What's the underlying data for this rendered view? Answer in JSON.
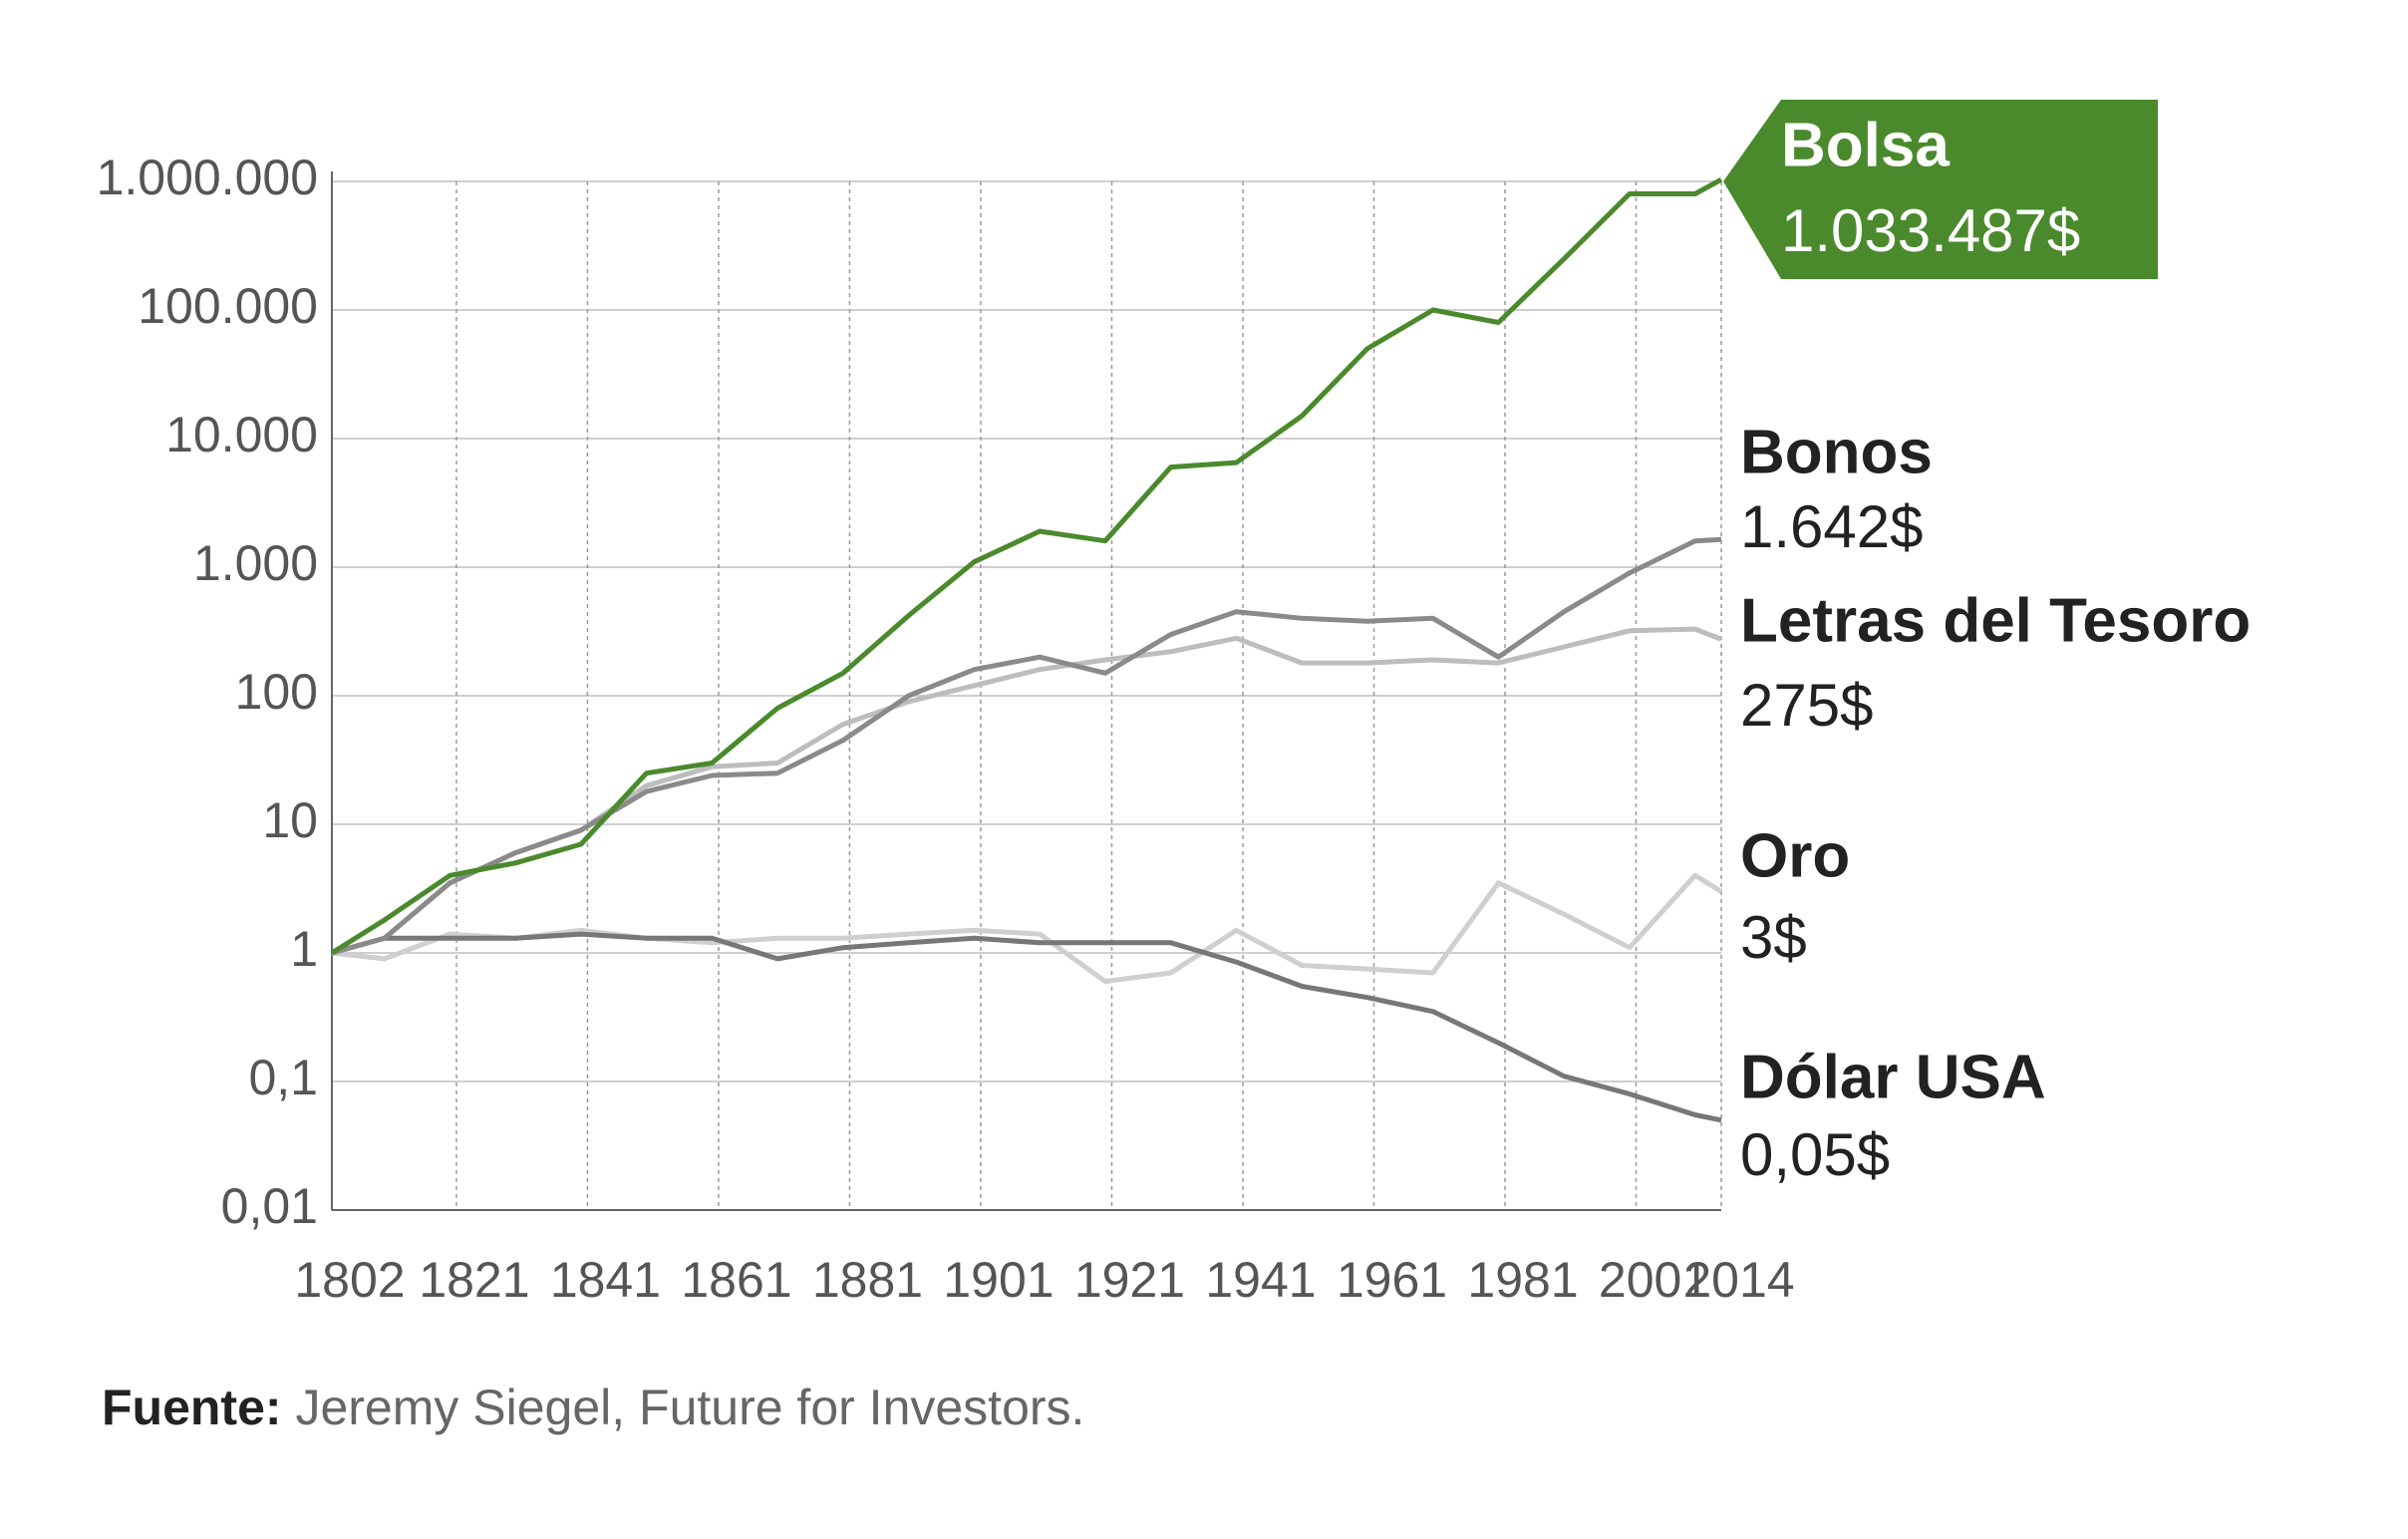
{
  "chart_data": {
    "type": "line",
    "log_y": true,
    "grid": true,
    "x": [
      1802,
      1810,
      1820,
      1830,
      1840,
      1850,
      1860,
      1870,
      1880,
      1890,
      1900,
      1910,
      1920,
      1930,
      1940,
      1950,
      1960,
      1970,
      1980,
      1990,
      2000,
      2010,
      2014
    ],
    "xlim": [
      1802,
      2014
    ],
    "xticks": [
      1802,
      1821,
      1841,
      1861,
      1881,
      1901,
      1921,
      1941,
      1961,
      1981,
      2001,
      2014
    ],
    "ylim": [
      0.01,
      1000000
    ],
    "yticks": [
      {
        "value": 0.01,
        "label": "0,01"
      },
      {
        "value": 0.1,
        "label": "0,1"
      },
      1,
      10,
      100,
      {
        "value": 1000,
        "label": "1.000"
      },
      {
        "value": 10000,
        "label": "10.000"
      },
      {
        "value": 100000,
        "label": "100.000"
      },
      {
        "value": 1000000,
        "label": "1.000.000"
      }
    ],
    "series": [
      {
        "name": "Bolsa",
        "color": "#4a8a2c",
        "values": [
          1,
          1.8,
          4,
          5,
          7,
          25,
          30,
          80,
          150,
          420,
          1100,
          1900,
          1600,
          6000,
          6500,
          15000,
          50000,
          100000,
          80000,
          250000,
          800000,
          800000,
          1033487
        ],
        "value_labels": [
          null,
          null,
          null,
          null,
          null,
          null,
          null,
          null,
          null,
          null,
          null,
          null,
          null,
          null,
          null,
          null,
          null,
          null,
          null,
          null,
          null,
          null,
          "1.033.487$"
        ]
      },
      {
        "name": "Bonos",
        "color": "#8a8a8a",
        "values": [
          1,
          1.3,
          3.5,
          6,
          9,
          18,
          24,
          25,
          45,
          100,
          160,
          200,
          150,
          300,
          450,
          400,
          380,
          400,
          200,
          450,
          900,
          1600,
          1642
        ],
        "value_labels": [
          null,
          null,
          null,
          null,
          null,
          null,
          null,
          null,
          null,
          null,
          null,
          null,
          null,
          null,
          null,
          null,
          null,
          null,
          null,
          null,
          null,
          null,
          "1.642$"
        ]
      },
      {
        "name": "Letras del Tesoro",
        "color": "#bdbdbd",
        "values": [
          1,
          1.3,
          3.5,
          6,
          9,
          20,
          28,
          30,
          60,
          90,
          120,
          160,
          190,
          220,
          280,
          180,
          180,
          190,
          180,
          240,
          320,
          330,
          275
        ],
        "value_labels": [
          null,
          null,
          null,
          null,
          null,
          null,
          null,
          null,
          null,
          null,
          null,
          null,
          null,
          null,
          null,
          null,
          null,
          null,
          null,
          null,
          null,
          null,
          "275$"
        ]
      },
      {
        "name": "Oro",
        "color": "#cfcfcf",
        "values": [
          1,
          0.9,
          1.4,
          1.3,
          1.5,
          1.3,
          1.2,
          1.3,
          1.3,
          1.4,
          1.5,
          1.4,
          0.6,
          0.7,
          1.5,
          0.8,
          0.75,
          0.7,
          3.5,
          2,
          1.1,
          4,
          3
        ],
        "value_labels": [
          null,
          null,
          null,
          null,
          null,
          null,
          null,
          null,
          null,
          null,
          null,
          null,
          null,
          null,
          null,
          null,
          null,
          null,
          null,
          null,
          null,
          null,
          "3$"
        ]
      },
      {
        "name": "Dólar USA",
        "color": "#777777",
        "values": [
          1,
          1.3,
          1.3,
          1.3,
          1.4,
          1.3,
          1.3,
          0.9,
          1.1,
          1.2,
          1.3,
          1.2,
          1.2,
          1.2,
          0.85,
          0.55,
          0.45,
          0.35,
          0.2,
          0.11,
          0.08,
          0.055,
          0.05
        ],
        "value_labels": [
          null,
          null,
          null,
          null,
          null,
          null,
          null,
          null,
          null,
          null,
          null,
          null,
          null,
          null,
          null,
          null,
          null,
          null,
          null,
          null,
          null,
          null,
          "0,05$"
        ]
      }
    ],
    "source_label": "Fuente:",
    "source": "Jeremy Siegel, Future for Investors."
  }
}
